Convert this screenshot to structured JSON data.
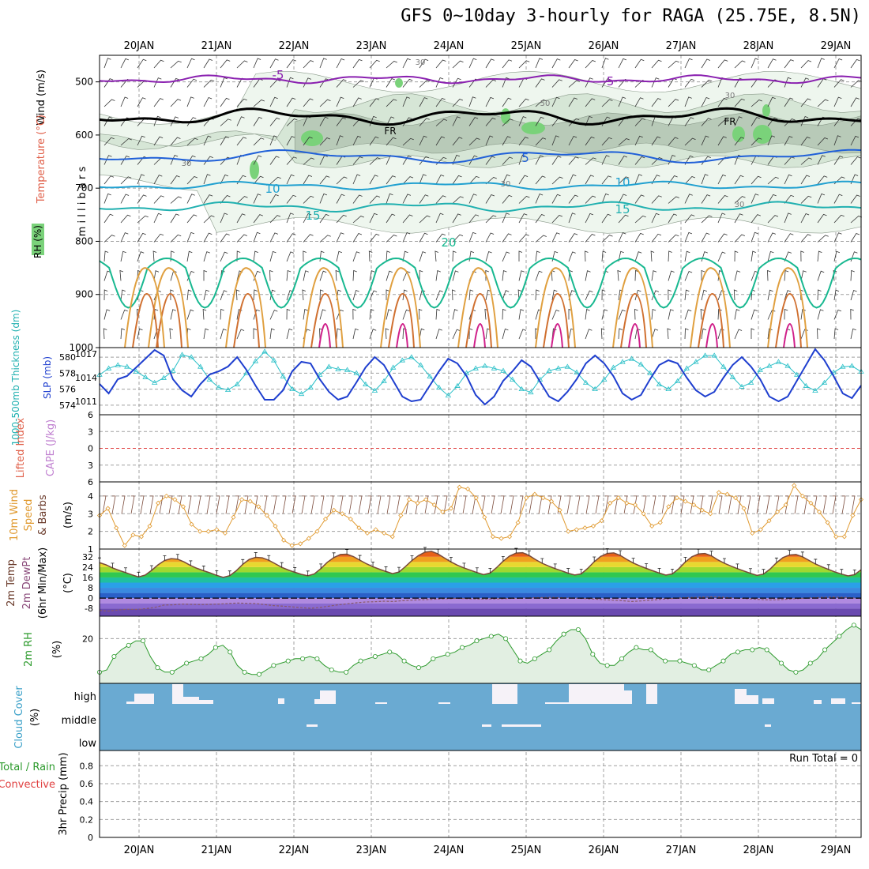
{
  "title": "GFS 0~10day 3-hourly for RAGA (25.75E, 8.5N)",
  "dates": [
    "20JAN",
    "21JAN",
    "22JAN",
    "23JAN",
    "24JAN",
    "25JAN",
    "26JAN",
    "27JAN",
    "28JAN",
    "29JAN"
  ],
  "colors": {
    "grid": "#a0a0a0",
    "slp": "#1f3fcf",
    "thickness": "#2cc0c8",
    "cape_zero": "#e04040",
    "wind10": "#e09a30",
    "rh2": "#2c9a2c",
    "rh2_fill": "#e2efe2",
    "cloud": "#6aaad2",
    "cloud_gap": "#f6f2f8",
    "temp_line": "#7a4a3a",
    "dew_line": "#8a5a6a"
  },
  "panels": {
    "upper": {
      "y_label": "m i l l i b a r s",
      "side_labels": [
        "Wind (m/s)",
        "Temperature (°C)",
        "RH (%)"
      ],
      "pressure_ticks": [
        500,
        600,
        700,
        800,
        900,
        1000
      ],
      "contour_labels": {
        "temperature": [
          "-5",
          "-5",
          "5",
          "10",
          "10",
          "15",
          "15",
          "20"
        ],
        "freezing": [
          "FR",
          "FR"
        ],
        "rh": [
          "30",
          "50",
          "30",
          "30",
          "30",
          "30"
        ]
      }
    },
    "thickness_slp": {
      "left_label": "1000-500mb Thickness (dm)",
      "right_label": "SLP (mb)",
      "left_ticks": [
        574,
        576,
        578,
        580
      ],
      "right_ticks": [
        1011,
        1014,
        1017
      ]
    },
    "li_cape": {
      "labels": [
        "Lifted Index",
        "CAPE (J/kg)"
      ],
      "ticks": [
        -6,
        -3,
        0,
        3,
        6
      ],
      "tick_labels": [
        "6",
        "3",
        "0",
        "3",
        "6"
      ]
    },
    "wind10": {
      "labels": [
        "10m Wind",
        "Speed",
        "& Barbs"
      ],
      "unit": "(m/s)",
      "ticks": [
        1,
        2,
        3,
        4
      ]
    },
    "temp2": {
      "labels": [
        "2m Temp",
        "2m DewPt",
        "(6hr Min/Max)"
      ],
      "unit": "(°C)",
      "ticks": [
        -8,
        0,
        8,
        16,
        24,
        32
      ]
    },
    "rh2": {
      "label": "2m RH",
      "unit": "(%)",
      "ticks": [
        20
      ]
    },
    "cloud": {
      "label": "Cloud Cover",
      "unit": "(%)",
      "levels": [
        "high",
        "middle",
        "low"
      ]
    },
    "precip": {
      "labels": [
        "Total / Rain",
        "Convective"
      ],
      "axis_label": "3hr Precip (mm)",
      "ticks": [
        "0",
        "0.2",
        "0.4",
        "0.6",
        "0.8"
      ],
      "run_total": "Run Total = 0"
    }
  },
  "chart_data": [
    {
      "type": "line",
      "panel": "thickness_slp",
      "x_unit": "3-hourly steps from 19JAN 12Z",
      "series": [
        {
          "name": "1000-500mb Thickness (dm)",
          "axis": "left",
          "values": [
            577.8,
            578.6,
            579,
            578.8,
            578.2,
            577.5,
            576.8,
            577.4,
            578.3,
            580.3,
            580.0,
            578.8,
            577.2,
            576.2,
            575.9,
            576.6,
            578.0,
            579.5,
            580.7,
            579.6,
            577.6,
            576.0,
            575.4,
            576.2,
            577.8,
            578.8,
            578.5,
            578.4,
            578.0,
            576.6,
            575.8,
            577.0,
            578.7,
            579.6,
            580.0,
            579.0,
            577.6,
            576.2,
            575.2,
            576.4,
            578.0,
            578.6,
            578.9,
            578.6,
            578.3,
            577.2,
            576.0,
            575.6,
            577.2,
            578.3,
            578.6,
            578.8,
            578.1,
            576.8,
            576.0,
            577.2,
            578.7,
            579.4,
            579.8,
            579.1,
            578.0,
            576.6,
            576.0,
            577.0,
            578.6,
            579.4,
            580.2,
            580.2,
            578.8,
            577.5,
            576.3,
            576.8,
            578.4,
            578.9,
            579.4,
            578.9,
            577.8,
            576.4,
            575.8,
            576.8,
            578.1,
            578.8,
            578.9,
            578.2
          ]
        },
        {
          "name": "SLP (mb)",
          "axis": "right",
          "values": [
            1013.2,
            1012.0,
            1013.8,
            1014.2,
            1015.3,
            1016.4,
            1017.5,
            1016.8,
            1013.8,
            1012.4,
            1011.6,
            1013.2,
            1014.4,
            1014.8,
            1015.4,
            1016.6,
            1015.0,
            1013.0,
            1011.2,
            1011.2,
            1012.4,
            1014.8,
            1016.0,
            1015.8,
            1013.8,
            1012.2,
            1011.2,
            1011.6,
            1013.4,
            1015.3,
            1016.6,
            1015.6,
            1013.6,
            1011.6,
            1011.0,
            1011.2,
            1013.0,
            1014.8,
            1016.4,
            1015.8,
            1014.2,
            1011.8,
            1010.6,
            1011.6,
            1013.6,
            1014.8,
            1016.2,
            1015.4,
            1013.5,
            1011.6,
            1011.0,
            1012.2,
            1013.8,
            1015.8,
            1016.8,
            1015.8,
            1014.2,
            1012.0,
            1011.2,
            1011.8,
            1013.8,
            1015.6,
            1016.2,
            1015.8,
            1014.0,
            1012.4,
            1011.6,
            1012.2,
            1014.0,
            1015.6,
            1016.6,
            1015.4,
            1013.8,
            1011.6,
            1011.0,
            1011.6,
            1013.6,
            1015.6,
            1017.6,
            1016.2,
            1014.2,
            1012.0,
            1011.4,
            1013.0
          ]
        }
      ]
    },
    {
      "type": "line",
      "panel": "li_cape",
      "series": [
        {
          "name": "Lifted Index",
          "values": []
        },
        {
          "name": "CAPE (J/kg)",
          "values": []
        }
      ]
    },
    {
      "type": "line",
      "panel": "wind10",
      "series": [
        {
          "name": "10m Wind Speed",
          "values": [
            2.9,
            3.3,
            2.2,
            1.2,
            1.8,
            1.7,
            2.3,
            3.6,
            4.0,
            3.8,
            3.4,
            2.4,
            2.0,
            2.0,
            2.1,
            1.9,
            2.8,
            3.8,
            3.7,
            3.4,
            2.9,
            2.3,
            1.5,
            1.2,
            1.3,
            1.6,
            2.0,
            2.7,
            3.2,
            3.0,
            2.7,
            2.2,
            1.9,
            2.1,
            1.9,
            1.7,
            2.9,
            3.8,
            3.6,
            3.8,
            3.5,
            3.1,
            3.3,
            4.5,
            4.4,
            3.9,
            2.8,
            1.7,
            1.6,
            1.7,
            2.5,
            3.9,
            4.1,
            3.9,
            3.7,
            3.2,
            2.0,
            2.1,
            2.2,
            2.3,
            2.6,
            3.6,
            3.9,
            3.6,
            3.5,
            3.0,
            2.3,
            2.5,
            3.4,
            3.9,
            3.7,
            3.5,
            3.2,
            3.0,
            4.2,
            4.1,
            3.9,
            3.3,
            1.9,
            2.1,
            2.6,
            3.1,
            3.5,
            4.6,
            4.0,
            3.6,
            3.1,
            2.5,
            1.7,
            1.7,
            2.9,
            3.8
          ]
        }
      ]
    },
    {
      "type": "area",
      "panel": "temp2",
      "series": [
        {
          "name": "2m Temp",
          "values": [
            27.5,
            25.8,
            23.4,
            21.5,
            19.8,
            18.0,
            16.4,
            17.8,
            21.5,
            25.8,
            29.2,
            30.6,
            30.2,
            28.0,
            25.2,
            23.0,
            21.2,
            19.5,
            17.6,
            16.1,
            17.4,
            21.2,
            26.2,
            30.0,
            31.6,
            31.2,
            29.3,
            26.6,
            23.8,
            21.8,
            20.0,
            18.4,
            17.3,
            18.7,
            22.8,
            27.8,
            31.4,
            33.8,
            34.0,
            32.2,
            29.4,
            26.6,
            24.3,
            22.4,
            20.6,
            19.0,
            20.2,
            24.4,
            29.2,
            33.0,
            35.6,
            36.2,
            34.2,
            31.0,
            28.0,
            25.4,
            23.4,
            21.6,
            19.8,
            18.2,
            19.4,
            23.6,
            28.6,
            32.6,
            34.9,
            35.2,
            33.0,
            29.8,
            27.0,
            24.8,
            22.8,
            21.1,
            19.3,
            17.9,
            18.8,
            23.0,
            28.2,
            32.3,
            34.6,
            35.0,
            33.1,
            30.0,
            27.2,
            25.0,
            23.0,
            21.2,
            19.4,
            17.8,
            18.8,
            22.8,
            28.0,
            32.0,
            34.2,
            34.6,
            32.8,
            29.6,
            27.0,
            24.8,
            22.8,
            21.0,
            19.2,
            17.6,
            18.6,
            22.4,
            27.4,
            31.4,
            33.4,
            33.8,
            32.0,
            29.2,
            26.4,
            24.2,
            22.2,
            20.2,
            18.6,
            17.2,
            18.2,
            22.0
          ]
        },
        {
          "name": "2m DewPt",
          "values": [
            -9.5,
            -10.0,
            -9.2,
            -8.6,
            -8.8,
            -8.2,
            -7.2,
            -5.4,
            -5.2,
            -4.6,
            -4.8,
            -5.0,
            -4.8,
            -4.6,
            -4.2,
            -3.8,
            -4.0,
            -4.2,
            -5.0,
            -5.8,
            -6.2,
            -6.8,
            -7.4,
            -7.8,
            -7.2,
            -6.2,
            -5.2,
            -4.4,
            -3.6,
            -3.0,
            -2.8,
            -2.4,
            -2.6,
            -2.0,
            -1.6,
            -1.2,
            -1.0,
            -0.6,
            -0.4,
            -0.2,
            -0.4,
            -0.6,
            -0.8,
            -0.6,
            -0.4,
            -0.2,
            0.0,
            0.2,
            0.4,
            0.6,
            0.4,
            0.2,
            0.0,
            -0.4,
            -0.8,
            -1.2,
            -1.6,
            -2.0,
            -2.6,
            -2.2,
            -1.6,
            -1.0,
            -0.4,
            0.0,
            0.4,
            0.6,
            0.8,
            1.0,
            0.6,
            0.2,
            -0.2,
            -0.6,
            -1.0,
            -1.4,
            -1.2,
            -0.8,
            -0.4,
            0.0,
            0.4,
            0.6,
            0.8,
            0.6,
            0.2,
            -0.4
          ]
        }
      ]
    },
    {
      "type": "area",
      "panel": "rh2",
      "series": [
        {
          "name": "2m RH",
          "values": [
            5,
            6,
            12,
            15,
            17,
            19,
            19,
            12,
            7,
            5,
            5,
            7,
            9,
            10,
            11,
            13,
            16,
            17,
            14,
            8,
            5,
            4,
            4,
            6,
            8,
            9,
            10,
            11,
            11,
            12,
            11,
            8,
            6,
            5,
            5,
            8,
            10,
            11,
            12,
            13,
            14,
            13,
            10,
            8,
            7,
            8,
            11,
            12,
            13,
            14,
            16,
            17,
            19,
            20,
            21,
            22,
            20,
            15,
            10,
            9,
            11,
            13,
            15,
            19,
            22,
            24,
            24,
            20,
            13,
            9,
            8,
            8,
            11,
            14,
            16,
            15,
            15,
            12,
            10,
            10,
            10,
            9,
            8,
            6,
            6,
            8,
            10,
            13,
            14,
            15,
            15,
            16,
            15,
            12,
            9,
            6,
            5,
            6,
            9,
            11,
            15,
            18,
            21,
            24,
            26,
            24
          ]
        }
      ]
    },
    {
      "type": "bar",
      "panel": "cloud",
      "series": [
        {
          "name": "high",
          "values": [
            0,
            0,
            0,
            0,
            0,
            0,
            2,
            6,
            22,
            17,
            5,
            0,
            0,
            7,
            15,
            17,
            10,
            6,
            5,
            5,
            3,
            0,
            0,
            0,
            0,
            0,
            0,
            0,
            0,
            0,
            0,
            0,
            0,
            0,
            0,
            0,
            0,
            2,
            0,
            0,
            0,
            0,
            9,
            0,
            0,
            0,
            0,
            0,
            0,
            0,
            0,
            0,
            0,
            0,
            0,
            0,
            0,
            1,
            0,
            0,
            0,
            0,
            0,
            0,
            0,
            0,
            0,
            0,
            0,
            0,
            0,
            0,
            3,
            0,
            0,
            0,
            0,
            1,
            0,
            0,
            0,
            0,
            0,
            0,
            0,
            0,
            0,
            3,
            1,
            0,
            0,
            0,
            0,
            0,
            0,
            0,
            0,
            0,
            0,
            0,
            0,
            0,
            0,
            0,
            0,
            0,
            0,
            0,
            0,
            0,
            0,
            0,
            0,
            0,
            0,
            0,
            0,
            0,
            0,
            0,
            0,
            0,
            0,
            0,
            0,
            0,
            0,
            0,
            0,
            0,
            0,
            0,
            0,
            0,
            0,
            0,
            0,
            0,
            0,
            0,
            0,
            0,
            0,
            0,
            0,
            0,
            0,
            0,
            0,
            0,
            0,
            0
          ]
        }
      ]
    },
    {
      "type": "bar",
      "panel": "precip",
      "series": [
        {
          "name": "Total / Rain",
          "values": []
        },
        {
          "name": "Convective",
          "values": []
        }
      ]
    }
  ]
}
